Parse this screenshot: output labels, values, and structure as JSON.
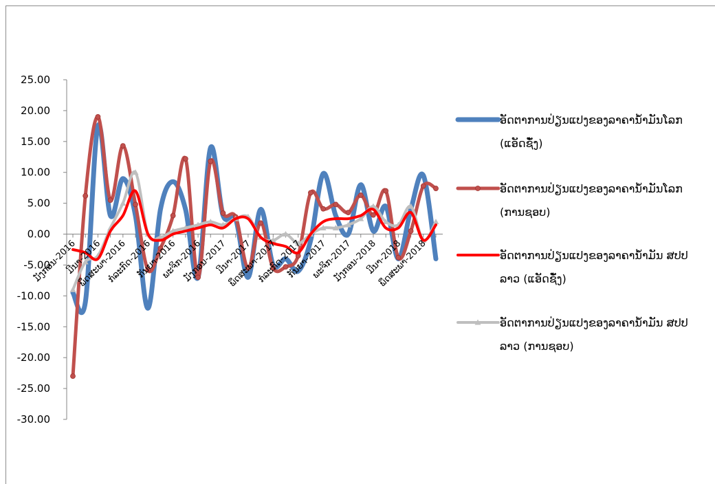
{
  "chart_data": {
    "type": "line",
    "y_ticks": [
      "25.00",
      "20.00",
      "15.00",
      "10.00",
      "5.00",
      "0.00",
      "-5.00",
      "-10.00",
      "-15.00",
      "-20.00",
      "-25.00",
      "-30.00"
    ],
    "ylim": [
      -30,
      25
    ],
    "x_tick_labels": [
      "ມັງກອນ-2016",
      "ມີນາ-2016",
      "ພຶດສະພາ-2016",
      "ກໍລະກົດ-2016",
      "ກັນຍາ-2016",
      "ພະຈິກ-2016",
      "ມັງກອນ-2017",
      "ມີນາ-2017",
      "ພຶດສະພາ-2017",
      "ກໍລະກົດ-2017",
      "ກັນຍາ-2017",
      "ພະຈິກ-2017",
      "ມັງກອນ-2018",
      "ມີນາ-2018",
      "ພຶດສະພາ-2018"
    ],
    "n_points": 30,
    "series": [
      {
        "name": "ອັດຕາການປ່ຽນແປງຂອງລາຄານ້ຳມັນໂລກ (ແອັດຊັ໋ງ)",
        "legend_lines": [
          "ອັດຕາການປ່ຽນແປງຂອງລາຄານ້ຳມັນໂລກ",
          "(ແອັດຊັ໋ງ)"
        ],
        "color": "#4f81bd",
        "line_width": 7,
        "marker": "none",
        "values": [
          -9.5,
          -11,
          17.5,
          3,
          9,
          3,
          -12,
          4,
          8.5,
          4,
          -7,
          14,
          3,
          2.5,
          -7,
          4,
          -5,
          -4,
          -6,
          -1,
          9.8,
          3,
          0,
          8,
          0.5,
          4.5,
          -4,
          4,
          9.5,
          -4
        ]
      },
      {
        "name": "ອັດຕາການປ່ຽນແປງຂອງລາຄານ້ຳມັນໂລກ (ການຊອບ)",
        "legend_lines": [
          "ອັດຕາການປ່ຽນແປງຂອງລາຄານ້ຳມັນໂລກ",
          "(ການຊອບ)"
        ],
        "color": "#c0504d",
        "line_width": 5,
        "marker": "circle",
        "values": [
          -23,
          6.2,
          19,
          5.5,
          14.3,
          4.8,
          -5.8,
          -2.3,
          3,
          12.2,
          -7,
          11.8,
          3.4,
          2.8,
          -5.5,
          1.8,
          -5.5,
          -5.3,
          -3.5,
          6.7,
          4.1,
          4.8,
          3.5,
          6.3,
          3.1,
          7,
          -3.8,
          0.5,
          7.8,
          7.4
        ]
      },
      {
        "name": "ອັດຕາການປ່ຽນແປງຂອງລາຄານ້ຳມັນ ສປປ ລາວ (ແອັດຊັ໋ງ)",
        "legend_lines": [
          "ອັດຕາການປ່ຽນແປງຂອງລາຄານ້ຳມັນ ສປປ",
          "ລາວ (ແອັດຊັ໋ງ)"
        ],
        "color": "#ff0000",
        "line_width": 4,
        "marker": "none",
        "values": [
          -2.5,
          -3,
          -4,
          0.5,
          3,
          7,
          0,
          -1,
          0,
          0.5,
          1,
          1.5,
          1,
          2.5,
          2.5,
          -0.5,
          -1.5,
          -2,
          -3,
          0,
          2,
          2.5,
          2.5,
          3,
          4,
          1,
          1,
          3.5,
          -1,
          1.5
        ]
      },
      {
        "name": "ອັດຕາການປ່ຽນແປງຂອງລາຄານ້ຳມັນ ສປປ ລາວ (ການຊອບ)",
        "legend_lines": [
          "ອັດຕາການປ່ຽນແປງຂອງລາຄານ້ຳມັນ ສປປ",
          "ລາວ (ການຊອບ)"
        ],
        "color": "#bfbfbf",
        "line_width": 4,
        "marker": "triangle",
        "values": [
          -9,
          -4.5,
          -3.5,
          1,
          5,
          10,
          0,
          -0.5,
          0.5,
          1,
          1.5,
          2,
          1.5,
          2.5,
          2.8,
          -0.5,
          -1,
          0,
          -1.5,
          0,
          1,
          1,
          1.5,
          2.5,
          4.5,
          2,
          1.5,
          4.5,
          -1,
          2
        ]
      }
    ]
  }
}
